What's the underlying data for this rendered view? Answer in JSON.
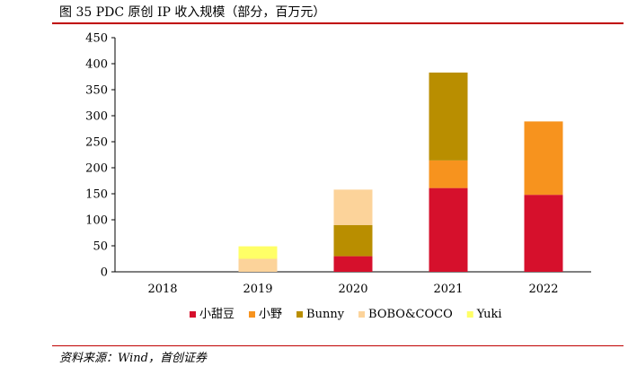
{
  "title": "图 35 PDC 原创 IP 收入规模（部分，百万元）",
  "source": "资料来源：Wind，首创证券",
  "chart_data": {
    "type": "bar",
    "stacked": true,
    "categories": [
      "2018",
      "2019",
      "2020",
      "2021",
      "2022"
    ],
    "ylim": [
      0,
      450
    ],
    "yticks": [
      0,
      50,
      100,
      150,
      200,
      250,
      300,
      350,
      400,
      450
    ],
    "series": [
      {
        "name": "小甜豆",
        "color": "#d6102c",
        "values": [
          0,
          0,
          30,
          161,
          148
        ]
      },
      {
        "name": "小野",
        "color": "#f7931e",
        "values": [
          0,
          0,
          0,
          53,
          141
        ]
      },
      {
        "name": "Bunny",
        "color": "#b98e00",
        "values": [
          0,
          0,
          60,
          169,
          0
        ]
      },
      {
        "name": "BOBO&COCO",
        "color": "#fcd39a",
        "values": [
          0,
          25,
          68,
          0,
          0
        ]
      },
      {
        "name": "Yuki",
        "color": "#ffff66",
        "values": [
          0,
          24,
          0,
          0,
          0
        ]
      }
    ],
    "legend_position": "bottom",
    "grid": false
  }
}
